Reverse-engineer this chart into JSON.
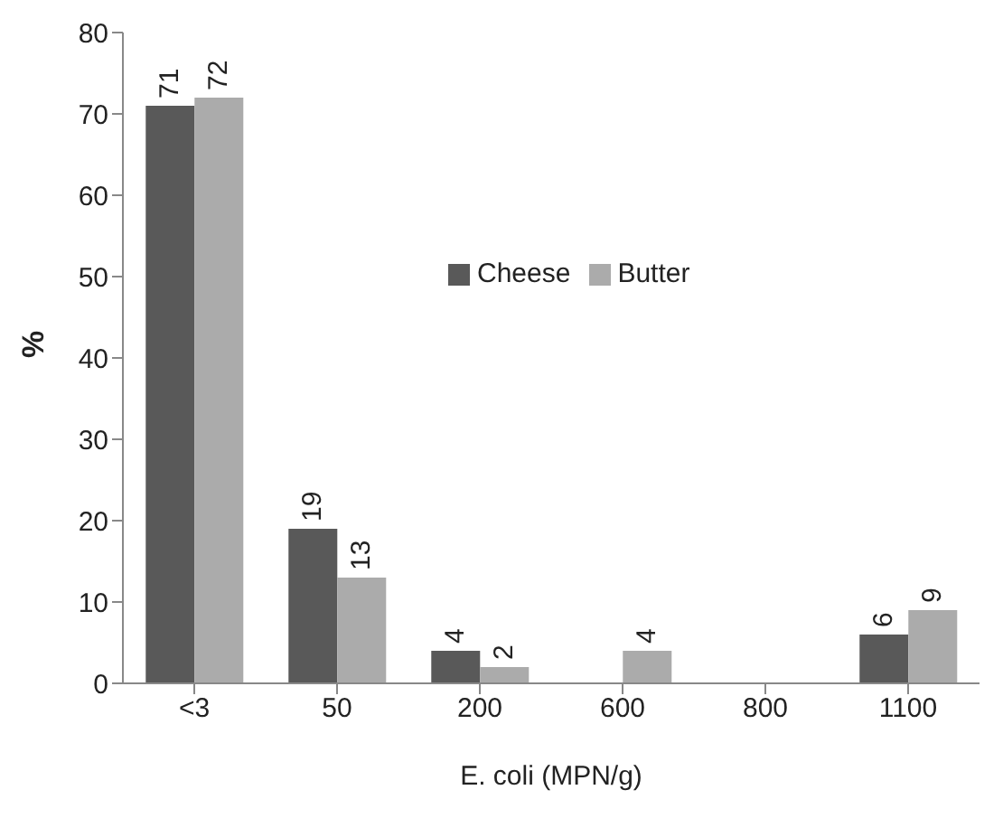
{
  "chart_data": {
    "type": "bar",
    "xlabel": "E. coli (MPN/g)",
    "ylabel": "%",
    "categories": [
      "<3",
      "50",
      "200",
      "600",
      "800",
      "1100"
    ],
    "series": [
      {
        "name": "Cheese",
        "color": "#595959",
        "values": [
          71,
          19,
          4,
          0,
          0,
          6
        ],
        "value_labels": [
          "71",
          "19",
          "4",
          null,
          null,
          "6"
        ]
      },
      {
        "name": "Butter",
        "color": "#ababab",
        "values": [
          72,
          13,
          2,
          4,
          0,
          9
        ],
        "value_labels": [
          "72",
          "13",
          "2",
          "4",
          null,
          "9"
        ]
      }
    ],
    "ylim": [
      0,
      80
    ],
    "yticks": [
      0,
      10,
      20,
      30,
      40,
      50,
      60,
      70,
      80
    ],
    "grid": false,
    "legend": "top right"
  }
}
